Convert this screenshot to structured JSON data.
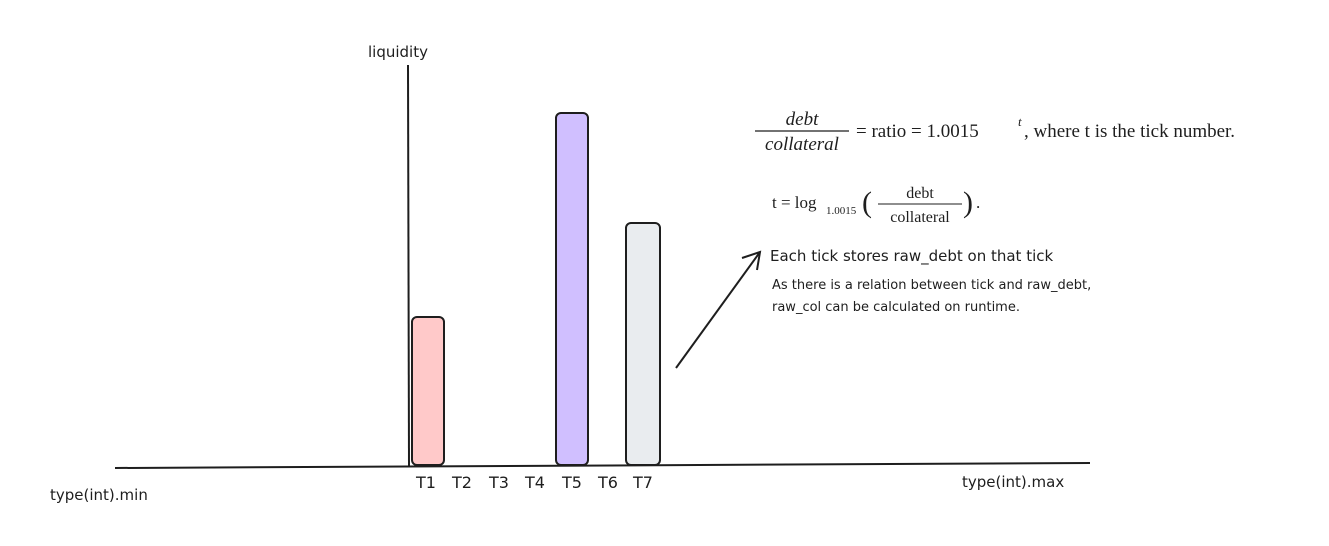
{
  "axes": {
    "y_label": "liquidity",
    "x_min_label": "type(int).min",
    "x_max_label": "type(int).max"
  },
  "ticks": [
    "T1",
    "T2",
    "T3",
    "T4",
    "T5",
    "T6",
    "T7"
  ],
  "formula1": {
    "numerator": "debt",
    "denominator": "collateral",
    "rhs": "= ratio = 1.0015",
    "exponent": "t",
    "suffix": ",  where t is the tick number."
  },
  "formula2": {
    "lhs": "t = log",
    "base": "1.0015",
    "numerator": "debt",
    "denominator": "collateral",
    "end": "."
  },
  "notes": [
    "Each tick stores raw_debt on that tick",
    "As there is a relation between tick and raw_debt,",
    "raw_col can be calculated on runtime."
  ]
}
